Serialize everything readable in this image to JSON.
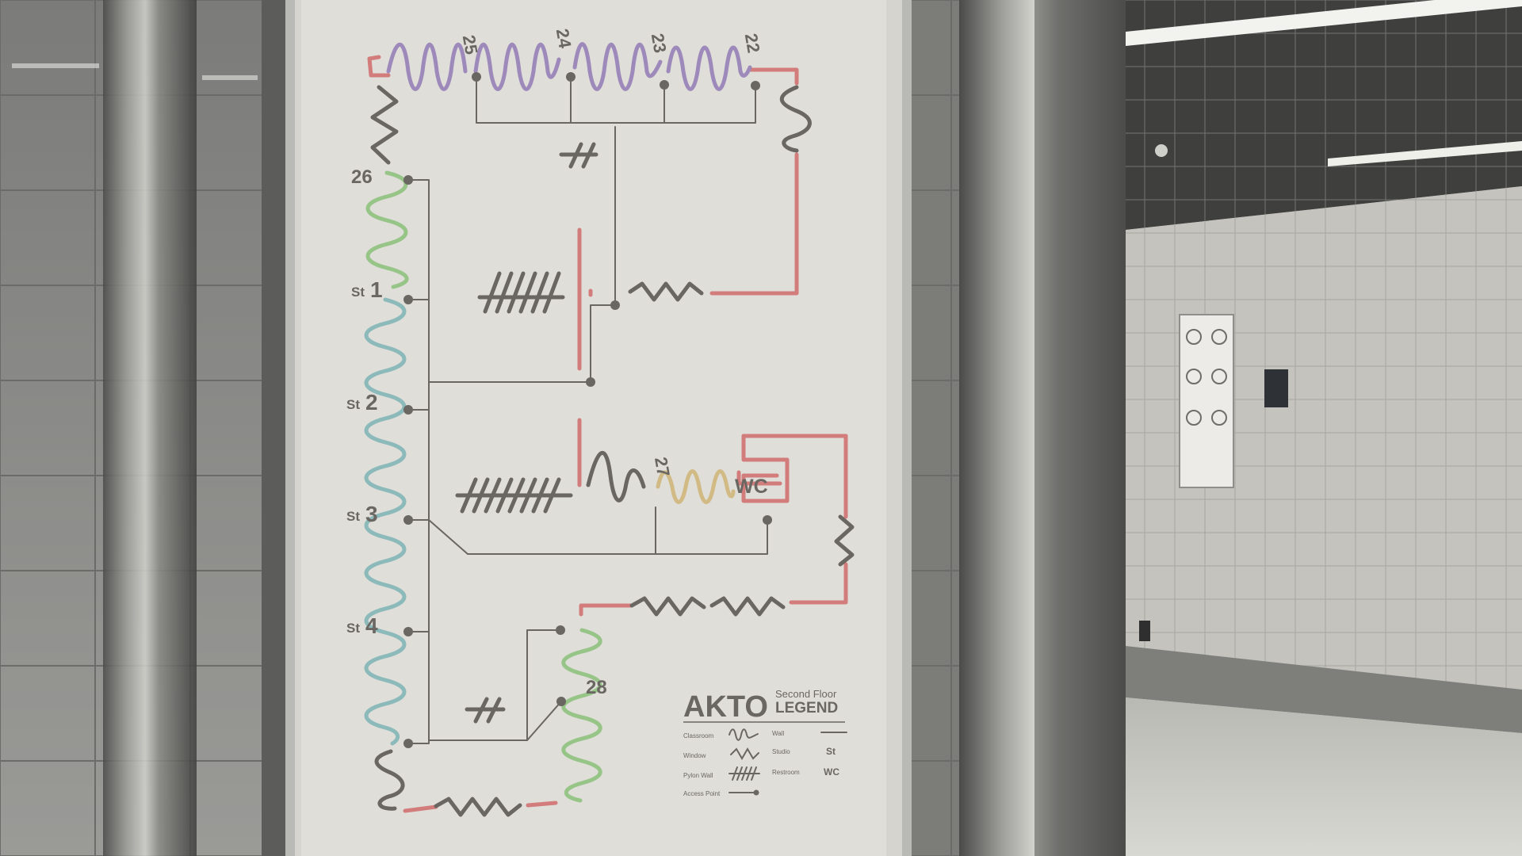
{
  "colors": {
    "purple": "#a38fc2",
    "green": "#9ccb8c",
    "teal": "#91bfc0",
    "yellow": "#d9c08a",
    "red": "#d98080",
    "dark": "#6e6a66",
    "poster_bg": "#e7e6e0",
    "wall": "#8c8c89"
  },
  "map": {
    "room_numbers": {
      "r25": "25",
      "r24": "24",
      "r23": "23",
      "r22": "22",
      "r26": "26",
      "r27": "27",
      "r28": "28"
    },
    "studios": {
      "prefix": "St",
      "s1": "1",
      "s2": "2",
      "s3": "3",
      "s4": "4"
    },
    "restroom_label": "WC"
  },
  "legend": {
    "brand": "AKTO",
    "subtitle": "Second Floor",
    "title": "LEGEND",
    "items": {
      "classroom": "Classroom",
      "window": "Window",
      "pylon_wall": "Pylon Wall",
      "access_point": "Access Point",
      "wall": "Wall",
      "studio": "Studio",
      "studio_symbol": "St",
      "restroom": "Restroom",
      "restroom_symbol": "WC"
    }
  }
}
